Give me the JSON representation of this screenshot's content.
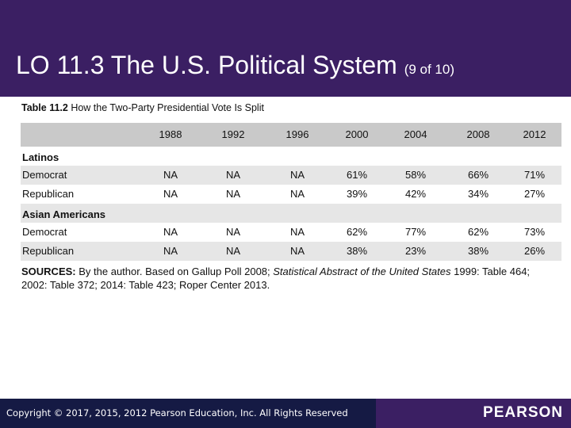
{
  "slide": {
    "title_main": "LO 11.3 The U.S. Political System",
    "title_sub": "(9 of 10)"
  },
  "table": {
    "caption_label": "Table 11.2",
    "caption_text": "How the Two-Party Presidential Vote Is Split",
    "years": [
      "1988",
      "1992",
      "1996",
      "2000",
      "2004",
      "2008",
      "2012"
    ],
    "groups": [
      {
        "name": "Latinos",
        "rows": [
          {
            "label": "Democrat",
            "values": [
              "NA",
              "NA",
              "NA",
              "61%",
              "58%",
              "66%",
              "71%"
            ]
          },
          {
            "label": "Republican",
            "values": [
              "NA",
              "NA",
              "NA",
              "39%",
              "42%",
              "34%",
              "27%"
            ]
          }
        ]
      },
      {
        "name": "Asian Americans",
        "rows": [
          {
            "label": "Democrat",
            "values": [
              "NA",
              "NA",
              "NA",
              "62%",
              "77%",
              "62%",
              "73%"
            ]
          },
          {
            "label": "Republican",
            "values": [
              "NA",
              "NA",
              "NA",
              "38%",
              "23%",
              "38%",
              "26%"
            ]
          }
        ]
      }
    ]
  },
  "sources": {
    "label": "SOURCES:",
    "text_before": "By the author. Based on Gallup Poll 2008;",
    "italic": "Statistical Abstract of the United States",
    "text_after": "1999: Table 464; 2002: Table 372; 2014: Table 423; Roper Center 2013."
  },
  "footer": {
    "copyright": "Copyright © 2017, 2015, 2012 Pearson Education, Inc. All Rights Reserved",
    "logo": "PEARSON"
  },
  "colors": {
    "header": "#3b1f63",
    "footer_dark": "#151a44",
    "table_header": "#c9c9c9",
    "row_shade": "#e6e6e6"
  }
}
